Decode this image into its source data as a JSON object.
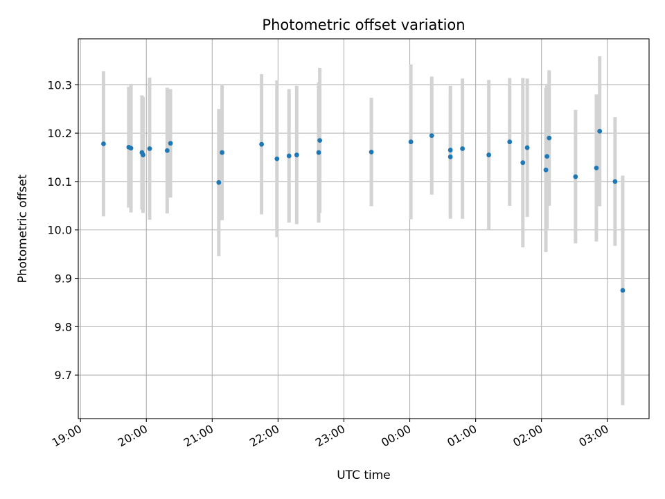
{
  "chart_data": {
    "type": "scatter",
    "title": "Photometric offset variation",
    "xlabel": "UTC time",
    "ylabel": "Photometric offset",
    "x_unit": "UTC hh:mm (times after 24:00 fall on the next day)",
    "xlim": [
      "18:58",
      "03:38"
    ],
    "ylim": [
      9.61,
      10.395
    ],
    "x_ticks": [
      "19:00",
      "20:00",
      "21:00",
      "22:00",
      "23:00",
      "00:00",
      "01:00",
      "02:00",
      "03:00"
    ],
    "y_ticks": [
      9.7,
      9.8,
      9.9,
      10.0,
      10.1,
      10.2,
      10.3
    ],
    "y_tick_labels": [
      "9.7",
      "9.8",
      "9.9",
      "10.0",
      "10.1",
      "10.2",
      "10.3"
    ],
    "grid": true,
    "colors": {
      "marker": "#1f77b4",
      "errorbar": "#d3d3d3",
      "grid": "#b0b0b0"
    },
    "series": [
      {
        "points": [
          {
            "x": "19:21",
            "y": 10.178,
            "err": 0.15
          },
          {
            "x": "19:44",
            "y": 10.171,
            "err": 0.125
          },
          {
            "x": "19:46",
            "y": 10.169,
            "err": 0.133
          },
          {
            "x": "19:56",
            "y": 10.16,
            "err": 0.118
          },
          {
            "x": "19:57",
            "y": 10.155,
            "err": 0.12
          },
          {
            "x": "20:03",
            "y": 10.168,
            "err": 0.147
          },
          {
            "x": "20:19",
            "y": 10.164,
            "err": 0.13
          },
          {
            "x": "20:22",
            "y": 10.179,
            "err": 0.112
          },
          {
            "x": "21:06",
            "y": 10.098,
            "err": 0.152
          },
          {
            "x": "21:09",
            "y": 10.16,
            "err": 0.14
          },
          {
            "x": "21:45",
            "y": 10.177,
            "err": 0.145
          },
          {
            "x": "21:59",
            "y": 10.147,
            "err": 0.162
          },
          {
            "x": "22:10",
            "y": 10.153,
            "err": 0.138
          },
          {
            "x": "22:17",
            "y": 10.155,
            "err": 0.143
          },
          {
            "x": "22:37",
            "y": 10.16,
            "err": 0.145
          },
          {
            "x": "22:38",
            "y": 10.185,
            "err": 0.15
          },
          {
            "x": "23:25",
            "y": 10.161,
            "err": 0.112
          },
          {
            "x": "00:01",
            "y": 10.182,
            "err": 0.16
          },
          {
            "x": "00:20",
            "y": 10.195,
            "err": 0.122
          },
          {
            "x": "00:37",
            "y": 10.165,
            "err": 0.133
          },
          {
            "x": "00:37",
            "y": 10.151,
            "err": 0.128
          },
          {
            "x": "00:48",
            "y": 10.168,
            "err": 0.145
          },
          {
            "x": "01:12",
            "y": 10.155,
            "err": 0.155
          },
          {
            "x": "01:31",
            "y": 10.182,
            "err": 0.132
          },
          {
            "x": "01:43",
            "y": 10.139,
            "err": 0.175
          },
          {
            "x": "01:47",
            "y": 10.17,
            "err": 0.143
          },
          {
            "x": "02:04",
            "y": 10.124,
            "err": 0.17
          },
          {
            "x": "02:05",
            "y": 10.152,
            "err": 0.15
          },
          {
            "x": "02:07",
            "y": 10.19,
            "err": 0.14
          },
          {
            "x": "02:31",
            "y": 10.11,
            "err": 0.138
          },
          {
            "x": "02:50",
            "y": 10.128,
            "err": 0.152
          },
          {
            "x": "02:53",
            "y": 10.204,
            "err": 0.155
          },
          {
            "x": "03:07",
            "y": 10.1,
            "err": 0.133
          },
          {
            "x": "03:14",
            "y": 9.875,
            "err": 0.237
          }
        ]
      }
    ]
  }
}
